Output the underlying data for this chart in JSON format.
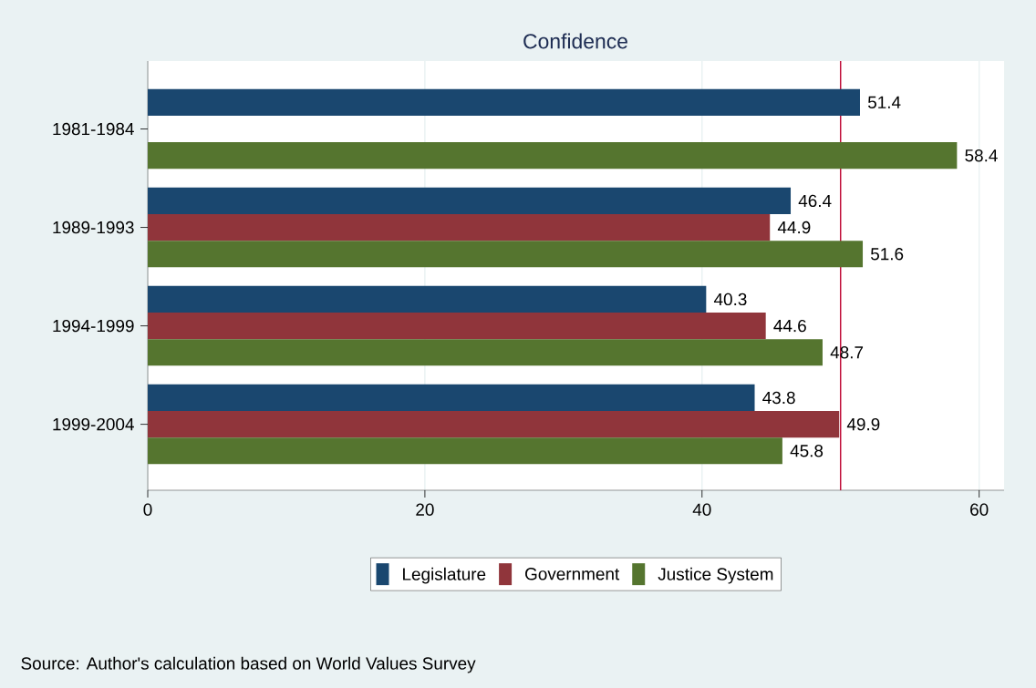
{
  "chart_data": {
    "type": "bar",
    "orientation": "horizontal",
    "title": "Confidence",
    "categories": [
      "1981-1984",
      "1989-1993",
      "1994-1999",
      "1999-2004"
    ],
    "series": [
      {
        "name": "Legislature",
        "color": "#1a476f",
        "values": [
          51.4,
          46.4,
          40.3,
          43.8
        ]
      },
      {
        "name": "Government",
        "color": "#90353b",
        "values": [
          null,
          44.9,
          44.6,
          49.9
        ]
      },
      {
        "name": "Justice System",
        "color": "#55752f",
        "values": [
          58.4,
          51.6,
          48.7,
          45.8
        ]
      }
    ],
    "xlim": [
      0,
      61.8
    ],
    "xticks": [
      0,
      20,
      40,
      60
    ],
    "grid": "x",
    "legend": "bottom",
    "data_labels": true,
    "ref_lines": [
      {
        "axis": "x",
        "value": 50,
        "color": "#c0103a"
      }
    ],
    "annotations": [
      "Source: Author's calculation based on World Values Survey"
    ]
  }
}
